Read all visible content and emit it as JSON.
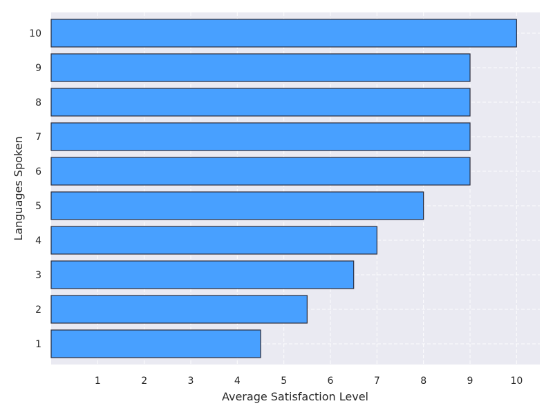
{
  "chart_data": {
    "type": "bar",
    "orientation": "horizontal",
    "categories": [
      "1",
      "2",
      "3",
      "4",
      "5",
      "6",
      "7",
      "8",
      "9",
      "10"
    ],
    "values": [
      4.5,
      5.5,
      6.5,
      7,
      8,
      9,
      9,
      9,
      9,
      10
    ],
    "xlabel": "Average Satisfaction Level",
    "ylabel": "Languages Spoken",
    "x_ticks": [
      "1",
      "2",
      "3",
      "4",
      "5",
      "6",
      "7",
      "8",
      "9",
      "10"
    ],
    "xlim": [
      0,
      10.5
    ],
    "grid": true,
    "colors": {
      "bar": "#48a0ff",
      "bar_edge": "#2b2b3a",
      "plot_background": "#eaeaf2",
      "grid": "#ffffff"
    }
  }
}
